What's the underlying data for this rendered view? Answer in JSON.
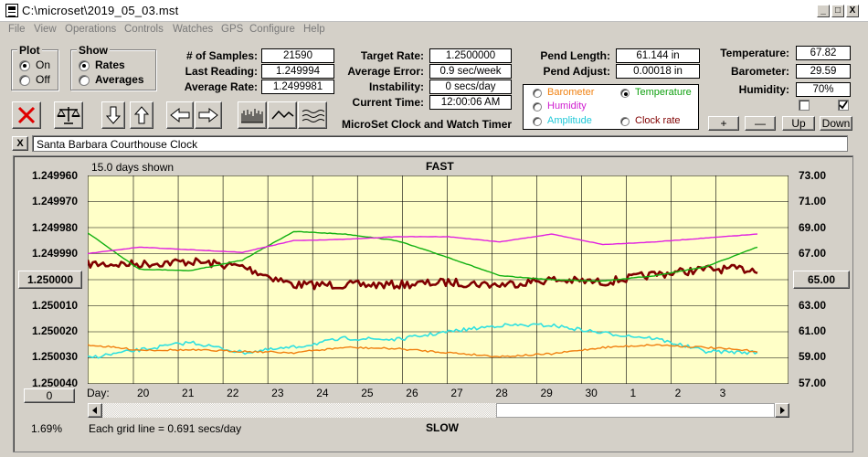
{
  "window": {
    "title": "C:\\microset\\2019_05_03.mst",
    "min": "_",
    "max": "□",
    "close": "X"
  },
  "menu": [
    "File",
    "View",
    "Operations",
    "Controls",
    "Watches",
    "GPS",
    "Configure",
    "Help"
  ],
  "plot": {
    "label": "Plot",
    "on": "On",
    "off": "Off"
  },
  "show": {
    "label": "Show",
    "rates": "Rates",
    "averages": "Averages"
  },
  "stats1": {
    "samples_label": "# of Samples:",
    "samples": "21590",
    "last_label": "Last Reading:",
    "last": "1.249994",
    "avg_label": "Average Rate:",
    "avg": "1.2499981"
  },
  "stats2": {
    "target_label": "Target Rate:",
    "target": "1.2500000",
    "error_label": "Average Error:",
    "error": "0.9 sec/week",
    "instab_label": "Instability:",
    "instab": "0 secs/day",
    "time_label": "Current Time:",
    "time": "12:00:06 AM"
  },
  "subtitle": "MicroSet Clock and Watch Timer",
  "pend": {
    "length_label": "Pend Length:",
    "length": "61.144 in",
    "adjust_label": "Pend Adjust:",
    "adjust": "0.00018 in"
  },
  "sensors": {
    "barometer": "Barometer",
    "temperature": "Temperature",
    "humidity": "Humidity",
    "amplitude": "Amplitude",
    "clock_rate": "Clock rate"
  },
  "env": {
    "temp_label": "Temperature:",
    "temp": "67.82",
    "baro_label": "Barometer:",
    "baro": "29.59",
    "humid_label": "Humidity:",
    "humid": "70%"
  },
  "env_buttons": {
    "plus": "+",
    "minus": "—",
    "up": "Up",
    "down": "Down"
  },
  "clock_name": "Santa Barbara Courthouse Clock",
  "clear_x": "X",
  "chart": {
    "days_shown": "15.0 days shown",
    "fast": "FAST",
    "slow": "SLOW",
    "left_ticks": [
      "1.249960",
      "1.249970",
      "1.249980",
      "1.249990",
      "1.250000",
      "1.250010",
      "1.250020",
      "1.250030",
      "1.250040"
    ],
    "right_ticks": [
      "73.00",
      "71.00",
      "69.00",
      "67.00",
      "65.00",
      "63.00",
      "61.00",
      "59.00",
      "57.00"
    ],
    "day_label": "Day:",
    "days": [
      "20",
      "21",
      "22",
      "23",
      "24",
      "25",
      "26",
      "27",
      "28",
      "29",
      "30",
      "1",
      "2",
      "3"
    ],
    "grid_note": "Each grid line = 0.691 secs/day",
    "percent": "1.69%",
    "zero_btn": "0"
  },
  "colors": {
    "plot_bg": "#ffffc8",
    "rate": "#800000",
    "temperature": "#10b010",
    "humidity": "#e020e0",
    "amplitude": "#30e0e0",
    "barometer": "#f08010"
  },
  "chart_data": {
    "type": "line",
    "xlabel": "Day:",
    "x": [
      "20",
      "21",
      "22",
      "23",
      "24",
      "25",
      "26",
      "27",
      "28",
      "29",
      "30",
      "1",
      "2",
      "3"
    ],
    "ylim_left": [
      1.24996,
      1.25004
    ],
    "ylim_right": [
      57,
      73
    ],
    "series": [
      {
        "name": "Rate",
        "axis": "left",
        "values": [
          1.249994,
          1.249994,
          1.249993,
          1.249995,
          1.250002,
          1.250002,
          1.250002,
          1.250001,
          1.250002,
          1.25,
          1.250001,
          1.249998,
          1.249996,
          1.249996
        ]
      },
      {
        "name": "Temperature",
        "axis": "right",
        "values": [
          68.6,
          65.8,
          65.7,
          66.5,
          68.7,
          68.5,
          68.0,
          66.7,
          65.3,
          65.0,
          64.9,
          65.3,
          66.0,
          67.5
        ]
      },
      {
        "name": "Humidity",
        "axis": "right",
        "values": [
          67.0,
          67.5,
          67.3,
          67.1,
          68.0,
          68.1,
          68.3,
          68.3,
          67.9,
          68.5,
          67.7,
          67.9,
          68.2,
          68.5
        ]
      },
      {
        "name": "Amplitude",
        "axis": "right",
        "values": [
          59.0,
          59.6,
          60.2,
          59.4,
          59.8,
          60.5,
          60.4,
          61.0,
          61.5,
          61.5,
          60.9,
          60.5,
          59.5,
          59.4
        ]
      },
      {
        "name": "Barometer",
        "axis": "right",
        "values": [
          60.0,
          59.6,
          59.6,
          59.5,
          59.4,
          59.8,
          59.7,
          59.4,
          59.1,
          59.3,
          59.8,
          60.0,
          59.8,
          59.5
        ]
      }
    ]
  }
}
